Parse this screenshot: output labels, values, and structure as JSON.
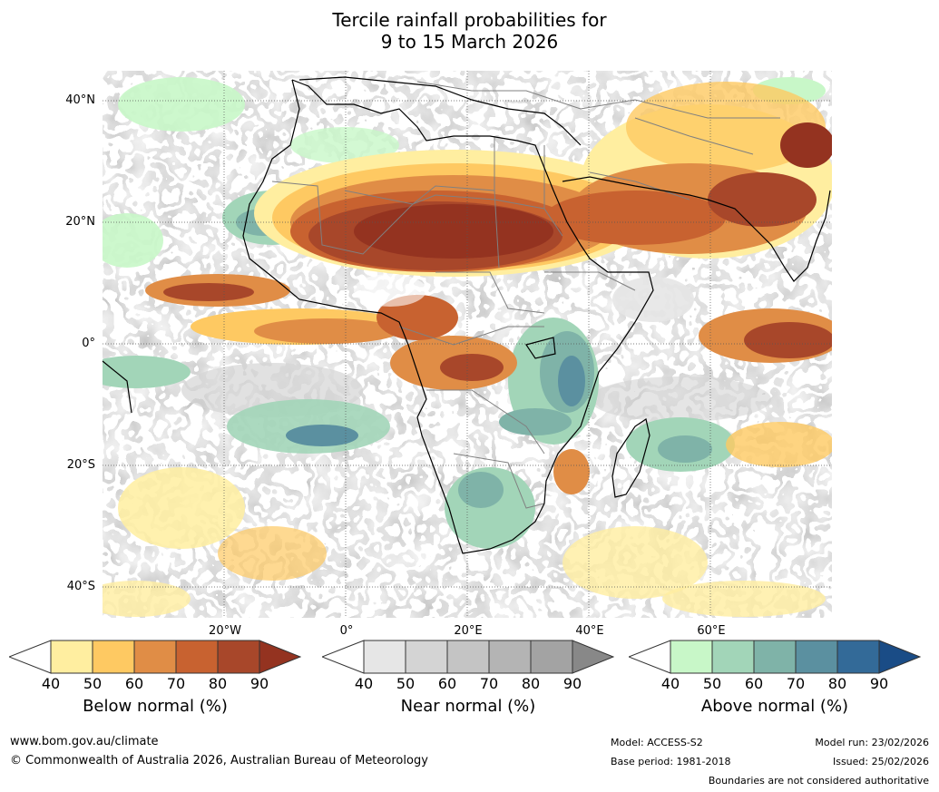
{
  "title": {
    "line1": "Tercile rainfall probabilities for",
    "line2": "9 to 15 March 2026"
  },
  "map": {
    "lat_labels": [
      "40°N",
      "20°N",
      "0°",
      "20°S",
      "40°S"
    ],
    "lon_labels": [
      "20°W",
      "0°",
      "20°E",
      "40°E",
      "60°E"
    ]
  },
  "colorbars": [
    {
      "label": "Below normal (%)",
      "ticks": [
        "40",
        "50",
        "60",
        "70",
        "80",
        "90"
      ],
      "low_color": "#ffffff",
      "colors": [
        "#ffeea0",
        "#fec962",
        "#e08d46",
        "#c86230",
        "#a8472a"
      ],
      "high_color": "#943320"
    },
    {
      "label": "Near normal (%)",
      "ticks": [
        "40",
        "50",
        "60",
        "70",
        "80",
        "90"
      ],
      "low_color": "#ffffff",
      "colors": [
        "#e6e6e6",
        "#d4d4d4",
        "#c4c4c4",
        "#b4b4b4",
        "#a3a3a3"
      ],
      "high_color": "#888888"
    },
    {
      "label": "Above normal (%)",
      "ticks": [
        "40",
        "50",
        "60",
        "70",
        "80",
        "90"
      ],
      "low_color": "#ffffff",
      "colors": [
        "#c8f7c8",
        "#a2d5b8",
        "#7fb3a8",
        "#5b90a0",
        "#336a98"
      ],
      "high_color": "#1a4c86"
    }
  ],
  "footer": {
    "website": "www.bom.gov.au/climate",
    "copyright": "© Commonwealth of Australia 2026, Australian Bureau of Meteorology",
    "model": "Model: ACCESS-S2",
    "base_period": "Base period: 1981-2018",
    "model_run": "Model run: 23/02/2026",
    "issued": "Issued: 25/02/2026",
    "disclaimer": "Boundaries are not considered authoritative"
  },
  "colors": {
    "coast": "#000000",
    "borders": "#808080",
    "grid": "#555555"
  }
}
